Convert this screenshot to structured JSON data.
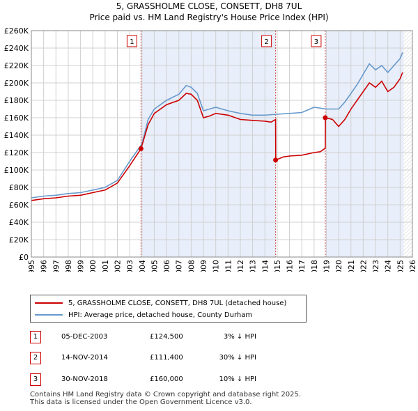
{
  "chart_data": {
    "type": "line",
    "title": "5, GRASSHOLME CLOSE, CONSETT, DH8 7UL",
    "subtitle": "Price paid vs. HM Land Registry's House Price Index (HPI)",
    "xlim": [
      1995,
      2026
    ],
    "ylim": [
      0,
      260000
    ],
    "x_ticks": [
      "1995",
      "1996",
      "1997",
      "1998",
      "1999",
      "2000",
      "2001",
      "2002",
      "2003",
      "2004",
      "2005",
      "2006",
      "2007",
      "2008",
      "2009",
      "2010",
      "2011",
      "2012",
      "2013",
      "2014",
      "2015",
      "2016",
      "2017",
      "2018",
      "2019",
      "2020",
      "2021",
      "2022",
      "2023",
      "2024",
      "2025",
      "2026"
    ],
    "y_ticks": [
      0,
      20000,
      40000,
      60000,
      80000,
      100000,
      120000,
      140000,
      160000,
      180000,
      200000,
      220000,
      240000,
      260000
    ],
    "y_tick_labels": [
      "£0",
      "£20K",
      "£40K",
      "£60K",
      "£80K",
      "£100K",
      "£120K",
      "£140K",
      "£160K",
      "£180K",
      "£200K",
      "£220K",
      "£240K",
      "£260K"
    ],
    "series": [
      {
        "name": "5, GRASSHOLME CLOSE, CONSETT, DH8 7UL (detached house)",
        "color": "#cc0000",
        "x": [
          1995.0,
          1996.0,
          1997.0,
          1998.0,
          1999.0,
          2000.0,
          2001.0,
          2002.0,
          2003.0,
          2003.92,
          2004.5,
          2005.0,
          2006.0,
          2007.0,
          2007.6,
          2008.0,
          2008.5,
          2009.0,
          2009.5,
          2010.0,
          2011.0,
          2012.0,
          2013.0,
          2014.0,
          2014.5,
          2014.87,
          2014.88,
          2015.5,
          2016.0,
          2017.0,
          2018.0,
          2018.5,
          2018.91,
          2018.92,
          2019.5,
          2020.0,
          2020.5,
          2021.0,
          2021.5,
          2022.0,
          2022.5,
          2023.0,
          2023.5,
          2024.0,
          2024.5,
          2025.0,
          2025.2
        ],
        "y": [
          65000,
          67000,
          68000,
          70000,
          71000,
          74000,
          77000,
          85000,
          105000,
          124500,
          152000,
          165000,
          175000,
          180000,
          188000,
          187000,
          180000,
          160000,
          162000,
          165000,
          163000,
          158000,
          157000,
          156000,
          155000,
          158000,
          111400,
          115000,
          116000,
          117000,
          120000,
          121000,
          125000,
          160000,
          158000,
          150000,
          158000,
          170000,
          180000,
          190000,
          200000,
          195000,
          202000,
          190000,
          195000,
          205000,
          212000
        ]
      },
      {
        "name": "HPI: Average price, detached house, County Durham",
        "color": "#6699cc",
        "x": [
          1995.0,
          1996.0,
          1997.0,
          1998.0,
          1999.0,
          2000.0,
          2001.0,
          2002.0,
          2003.0,
          2004.0,
          2004.5,
          2005.0,
          2006.0,
          2007.0,
          2007.6,
          2008.0,
          2008.5,
          2009.0,
          2009.5,
          2010.0,
          2011.0,
          2012.0,
          2013.0,
          2014.0,
          2015.0,
          2016.0,
          2017.0,
          2018.0,
          2019.0,
          2020.0,
          2020.5,
          2021.0,
          2021.5,
          2022.0,
          2022.5,
          2023.0,
          2023.5,
          2024.0,
          2024.5,
          2025.0,
          2025.2
        ],
        "y": [
          68000,
          70000,
          71000,
          73000,
          74000,
          77000,
          80000,
          88000,
          110000,
          130000,
          158000,
          170000,
          180000,
          187000,
          197000,
          195000,
          188000,
          168000,
          170000,
          172000,
          168000,
          165000,
          163000,
          163000,
          164000,
          165000,
          166000,
          172000,
          170000,
          170000,
          178000,
          188000,
          198000,
          210000,
          222000,
          215000,
          220000,
          212000,
          220000,
          228000,
          235000
        ]
      }
    ],
    "annotations": [
      {
        "label": "1",
        "x": 2003.92,
        "y": 124500
      },
      {
        "label": "2",
        "x": 2014.87,
        "y": 111400
      },
      {
        "label": "3",
        "x": 2018.91,
        "y": 160000
      }
    ],
    "colors": {
      "red": "#cc0000",
      "blue": "#6699cc",
      "shade": "#e8eefa",
      "grid": "#d0d0d0"
    }
  },
  "legend": {
    "red_label": "5, GRASSHOLME CLOSE, CONSETT, DH8 7UL (detached house)",
    "blue_label": "HPI: Average price, detached house, County Durham"
  },
  "table": [
    {
      "num": "1",
      "date": "05-DEC-2003",
      "price": "£124,500",
      "hpi": "3% ↓ HPI"
    },
    {
      "num": "2",
      "date": "14-NOV-2014",
      "price": "£111,400",
      "hpi": "30% ↓ HPI"
    },
    {
      "num": "3",
      "date": "30-NOV-2018",
      "price": "£160,000",
      "hpi": "10% ↓ HPI"
    }
  ],
  "footer": {
    "line1": "Contains HM Land Registry data © Crown copyright and database right 2025.",
    "line2": "This data is licensed under the Open Government Licence v3.0."
  }
}
